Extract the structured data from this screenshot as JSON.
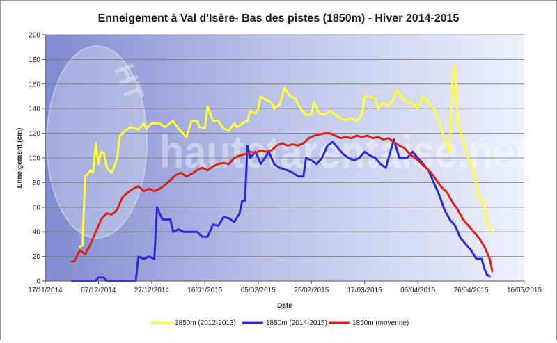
{
  "chart_data": {
    "type": "line",
    "title": "Enneigement à Val d'Isère- Bas des pistes (1850m) - Hiver 2014-2015",
    "xlabel": "Date",
    "ylabel": "Enneigement (cm)",
    "xlim": [
      "2014-11-17",
      "2015-05-16"
    ],
    "ylim": [
      0,
      200
    ],
    "y_ticks": [
      0,
      20,
      40,
      60,
      80,
      100,
      120,
      140,
      160,
      180,
      200
    ],
    "x_ticks": [
      "17/11/2014",
      "07/12/2014",
      "27/12/2014",
      "16/01/2015",
      "05/02/2015",
      "25/02/2015",
      "17/03/2015",
      "06/04/2015",
      "26/04/2015",
      "16/05/2015"
    ],
    "grid": "horizontal",
    "legend_position": "bottom",
    "watermark": "hautetarentaise.net",
    "watermark_logo": "HT",
    "colors": {
      "plot_bg_left": "#7f8bd0",
      "plot_bg_right": "#eceefa",
      "gridline": "#7a7a7a"
    },
    "series": [
      {
        "name": "1850m (2012-2013)",
        "color": "#ffff33",
        "points": [
          [
            "2014-11-30",
            28
          ],
          [
            "2014-12-01",
            29
          ],
          [
            "2014-12-02",
            85
          ],
          [
            "2014-12-03",
            87
          ],
          [
            "2014-12-04",
            90
          ],
          [
            "2014-12-05",
            88
          ],
          [
            "2014-12-06",
            112
          ],
          [
            "2014-12-07",
            95
          ],
          [
            "2014-12-08",
            105
          ],
          [
            "2014-12-09",
            104
          ],
          [
            "2014-12-10",
            93
          ],
          [
            "2014-12-11",
            90
          ],
          [
            "2014-12-12",
            88
          ],
          [
            "2014-12-13",
            93
          ],
          [
            "2014-12-14",
            100
          ],
          [
            "2014-12-15",
            118
          ],
          [
            "2014-12-17",
            122
          ],
          [
            "2014-12-19",
            125
          ],
          [
            "2014-12-22",
            123
          ],
          [
            "2014-12-24",
            128
          ],
          [
            "2014-12-25",
            124
          ],
          [
            "2014-12-27",
            128
          ],
          [
            "2014-12-30",
            128
          ],
          [
            "2015-01-01",
            125
          ],
          [
            "2015-01-04",
            130
          ],
          [
            "2015-01-06",
            124
          ],
          [
            "2015-01-09",
            117
          ],
          [
            "2015-01-11",
            130
          ],
          [
            "2015-01-13",
            130
          ],
          [
            "2015-01-14",
            125
          ],
          [
            "2015-01-16",
            124
          ],
          [
            "2015-01-17",
            142
          ],
          [
            "2015-01-19",
            130
          ],
          [
            "2015-01-21",
            130
          ],
          [
            "2015-01-23",
            124
          ],
          [
            "2015-01-25",
            122
          ],
          [
            "2015-01-27",
            128
          ],
          [
            "2015-01-28",
            125
          ],
          [
            "2015-01-30",
            128
          ],
          [
            "2015-02-01",
            130
          ],
          [
            "2015-02-02",
            138
          ],
          [
            "2015-02-04",
            136
          ],
          [
            "2015-02-05",
            140
          ],
          [
            "2015-02-06",
            150
          ],
          [
            "2015-02-08",
            147
          ],
          [
            "2015-02-10",
            145
          ],
          [
            "2015-02-11",
            140
          ],
          [
            "2015-02-13",
            143
          ],
          [
            "2015-02-15",
            157
          ],
          [
            "2015-02-17",
            150
          ],
          [
            "2015-02-19",
            148
          ],
          [
            "2015-02-21",
            140
          ],
          [
            "2015-02-23",
            135
          ],
          [
            "2015-02-25",
            135
          ],
          [
            "2015-02-26",
            145
          ],
          [
            "2015-02-28",
            136
          ],
          [
            "2015-03-02",
            135
          ],
          [
            "2015-03-04",
            138
          ],
          [
            "2015-03-06",
            135
          ],
          [
            "2015-03-08",
            132
          ],
          [
            "2015-03-10",
            131
          ],
          [
            "2015-03-12",
            132
          ],
          [
            "2015-03-14",
            130
          ],
          [
            "2015-03-16",
            135
          ],
          [
            "2015-03-17",
            150
          ],
          [
            "2015-03-19",
            150
          ],
          [
            "2015-03-21",
            148
          ],
          [
            "2015-03-22",
            140
          ],
          [
            "2015-03-24",
            145
          ],
          [
            "2015-03-26",
            142
          ],
          [
            "2015-03-28",
            148
          ],
          [
            "2015-03-29",
            155
          ],
          [
            "2015-03-31",
            150
          ],
          [
            "2015-04-02",
            145
          ],
          [
            "2015-04-04",
            145
          ],
          [
            "2015-04-06",
            140
          ],
          [
            "2015-04-08",
            150
          ],
          [
            "2015-04-10",
            145
          ],
          [
            "2015-04-12",
            140
          ],
          [
            "2015-04-14",
            130
          ],
          [
            "2015-04-16",
            115
          ],
          [
            "2015-04-18",
            105
          ],
          [
            "2015-04-19",
            160
          ],
          [
            "2015-04-20",
            175
          ],
          [
            "2015-04-21",
            130
          ],
          [
            "2015-04-23",
            115
          ],
          [
            "2015-04-25",
            100
          ],
          [
            "2015-04-27",
            90
          ],
          [
            "2015-04-29",
            68
          ],
          [
            "2015-05-01",
            62
          ],
          [
            "2015-05-02",
            48
          ],
          [
            "2015-05-04",
            40
          ]
        ]
      },
      {
        "name": "1850m (2014-2015)",
        "color": "#2a2ae6",
        "points": [
          [
            "2014-11-27",
            0
          ],
          [
            "2014-12-06",
            0
          ],
          [
            "2014-12-07",
            3
          ],
          [
            "2014-12-09",
            3
          ],
          [
            "2014-12-10",
            0
          ],
          [
            "2014-12-21",
            0
          ],
          [
            "2014-12-22",
            20
          ],
          [
            "2014-12-24",
            18
          ],
          [
            "2014-12-26",
            20
          ],
          [
            "2014-12-28",
            18
          ],
          [
            "2014-12-29",
            60
          ],
          [
            "2014-12-31",
            50
          ],
          [
            "2015-01-03",
            50
          ],
          [
            "2015-01-04",
            40
          ],
          [
            "2015-01-06",
            42
          ],
          [
            "2015-01-08",
            40
          ],
          [
            "2015-01-13",
            40
          ],
          [
            "2015-01-15",
            36
          ],
          [
            "2015-01-17",
            36
          ],
          [
            "2015-01-19",
            46
          ],
          [
            "2015-01-21",
            45
          ],
          [
            "2015-01-23",
            52
          ],
          [
            "2015-01-25",
            51
          ],
          [
            "2015-01-27",
            48
          ],
          [
            "2015-01-29",
            55
          ],
          [
            "2015-01-30",
            65
          ],
          [
            "2015-01-31",
            65
          ],
          [
            "2015-02-01",
            110
          ],
          [
            "2015-02-02",
            100
          ],
          [
            "2015-02-04",
            105
          ],
          [
            "2015-02-06",
            95
          ],
          [
            "2015-02-09",
            105
          ],
          [
            "2015-02-11",
            95
          ],
          [
            "2015-02-13",
            92
          ],
          [
            "2015-02-16",
            90
          ],
          [
            "2015-02-18",
            88
          ],
          [
            "2015-02-20",
            85
          ],
          [
            "2015-02-22",
            85
          ],
          [
            "2015-02-23",
            100
          ],
          [
            "2015-02-25",
            98
          ],
          [
            "2015-02-27",
            95
          ],
          [
            "2015-03-01",
            100
          ],
          [
            "2015-03-03",
            110
          ],
          [
            "2015-03-05",
            113
          ],
          [
            "2015-03-07",
            108
          ],
          [
            "2015-03-09",
            103
          ],
          [
            "2015-03-11",
            100
          ],
          [
            "2015-03-13",
            98
          ],
          [
            "2015-03-15",
            100
          ],
          [
            "2015-03-17",
            105
          ],
          [
            "2015-03-19",
            102
          ],
          [
            "2015-03-21",
            100
          ],
          [
            "2015-03-23",
            95
          ],
          [
            "2015-03-25",
            92
          ],
          [
            "2015-03-26",
            100
          ],
          [
            "2015-03-28",
            115
          ],
          [
            "2015-03-30",
            100
          ],
          [
            "2015-04-02",
            100
          ],
          [
            "2015-04-04",
            105
          ],
          [
            "2015-04-06",
            100
          ],
          [
            "2015-04-08",
            95
          ],
          [
            "2015-04-10",
            90
          ],
          [
            "2015-04-12",
            80
          ],
          [
            "2015-04-14",
            70
          ],
          [
            "2015-04-16",
            58
          ],
          [
            "2015-04-18",
            50
          ],
          [
            "2015-04-20",
            45
          ],
          [
            "2015-04-22",
            35
          ],
          [
            "2015-04-24",
            30
          ],
          [
            "2015-04-26",
            25
          ],
          [
            "2015-04-28",
            18
          ],
          [
            "2015-04-30",
            18
          ],
          [
            "2015-05-01",
            10
          ],
          [
            "2015-05-02",
            5
          ],
          [
            "2015-05-03",
            4
          ]
        ]
      },
      {
        "name": "1850m (moyenne)",
        "color": "#dd2211",
        "points": [
          [
            "2014-11-27",
            16
          ],
          [
            "2014-11-28",
            16
          ],
          [
            "2014-11-30",
            25
          ],
          [
            "2014-12-02",
            22
          ],
          [
            "2014-12-04",
            30
          ],
          [
            "2014-12-06",
            40
          ],
          [
            "2014-12-08",
            50
          ],
          [
            "2014-12-10",
            55
          ],
          [
            "2014-12-12",
            54
          ],
          [
            "2014-12-14",
            58
          ],
          [
            "2014-12-16",
            68
          ],
          [
            "2014-12-18",
            72
          ],
          [
            "2014-12-20",
            75
          ],
          [
            "2014-12-22",
            77
          ],
          [
            "2014-12-24",
            73
          ],
          [
            "2014-12-26",
            75
          ],
          [
            "2014-12-28",
            73
          ],
          [
            "2014-12-30",
            75
          ],
          [
            "2015-01-01",
            78
          ],
          [
            "2015-01-03",
            82
          ],
          [
            "2015-01-05",
            86
          ],
          [
            "2015-01-07",
            88
          ],
          [
            "2015-01-09",
            85
          ],
          [
            "2015-01-11",
            87
          ],
          [
            "2015-01-13",
            90
          ],
          [
            "2015-01-15",
            92
          ],
          [
            "2015-01-17",
            90
          ],
          [
            "2015-01-19",
            93
          ],
          [
            "2015-01-21",
            95
          ],
          [
            "2015-01-23",
            96
          ],
          [
            "2015-01-25",
            95
          ],
          [
            "2015-01-27",
            100
          ],
          [
            "2015-01-29",
            102
          ],
          [
            "2015-01-31",
            103
          ],
          [
            "2015-02-02",
            105
          ],
          [
            "2015-02-04",
            104
          ],
          [
            "2015-02-06",
            106
          ],
          [
            "2015-02-08",
            105
          ],
          [
            "2015-02-10",
            106
          ],
          [
            "2015-02-12",
            110
          ],
          [
            "2015-02-14",
            112
          ],
          [
            "2015-02-16",
            110
          ],
          [
            "2015-02-18",
            111
          ],
          [
            "2015-02-20",
            110
          ],
          [
            "2015-02-22",
            112
          ],
          [
            "2015-02-24",
            116
          ],
          [
            "2015-02-26",
            118
          ],
          [
            "2015-02-28",
            119
          ],
          [
            "2015-03-02",
            120
          ],
          [
            "2015-03-04",
            120
          ],
          [
            "2015-03-06",
            118
          ],
          [
            "2015-03-08",
            116
          ],
          [
            "2015-03-10",
            117
          ],
          [
            "2015-03-12",
            116
          ],
          [
            "2015-03-14",
            118
          ],
          [
            "2015-03-16",
            117
          ],
          [
            "2015-03-18",
            118
          ],
          [
            "2015-03-20",
            116
          ],
          [
            "2015-03-22",
            117
          ],
          [
            "2015-03-24",
            115
          ],
          [
            "2015-03-26",
            116
          ],
          [
            "2015-03-28",
            113
          ],
          [
            "2015-03-30",
            110
          ],
          [
            "2015-04-01",
            108
          ],
          [
            "2015-04-03",
            103
          ],
          [
            "2015-04-05",
            100
          ],
          [
            "2015-04-07",
            96
          ],
          [
            "2015-04-09",
            92
          ],
          [
            "2015-04-11",
            88
          ],
          [
            "2015-04-13",
            82
          ],
          [
            "2015-04-15",
            76
          ],
          [
            "2015-04-17",
            72
          ],
          [
            "2015-04-19",
            64
          ],
          [
            "2015-04-21",
            58
          ],
          [
            "2015-04-23",
            50
          ],
          [
            "2015-04-25",
            45
          ],
          [
            "2015-04-27",
            40
          ],
          [
            "2015-04-29",
            35
          ],
          [
            "2015-05-01",
            28
          ],
          [
            "2015-05-03",
            18
          ],
          [
            "2015-05-04",
            8
          ]
        ]
      }
    ]
  }
}
